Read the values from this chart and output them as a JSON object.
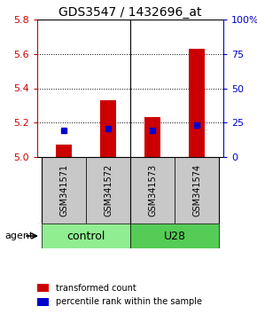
{
  "title": "GDS3547 / 1432696_at",
  "samples": [
    "GSM341571",
    "GSM341572",
    "GSM341573",
    "GSM341574"
  ],
  "bar_values": [
    5.07,
    5.33,
    5.23,
    5.63
  ],
  "bar_base": 5.0,
  "percentile_values": [
    5.155,
    5.165,
    5.155,
    5.185
  ],
  "groups": [
    {
      "label": "control",
      "indices": [
        0,
        1
      ],
      "color": "#90EE90"
    },
    {
      "label": "U28",
      "indices": [
        2,
        3
      ],
      "color": "#55CC55"
    }
  ],
  "ylim_left": [
    5.0,
    5.8
  ],
  "ylim_right": [
    0,
    100
  ],
  "yticks_left": [
    5.0,
    5.2,
    5.4,
    5.6,
    5.8
  ],
  "yticks_right": [
    0,
    25,
    50,
    75,
    100
  ],
  "ytick_labels_right": [
    "0",
    "25",
    "50",
    "75",
    "100%"
  ],
  "bar_color": "#CC0000",
  "percentile_color": "#0000CC",
  "bar_width": 0.35,
  "agent_label": "agent",
  "legend": [
    {
      "color": "#CC0000",
      "label": "transformed count"
    },
    {
      "color": "#0000CC",
      "label": "percentile rank within the sample"
    }
  ],
  "left_axis_color": "#CC0000",
  "right_axis_color": "#0000CC",
  "sample_label_fontsize": 7,
  "group_label_fontsize": 9,
  "title_fontsize": 10,
  "legend_fontsize": 7
}
